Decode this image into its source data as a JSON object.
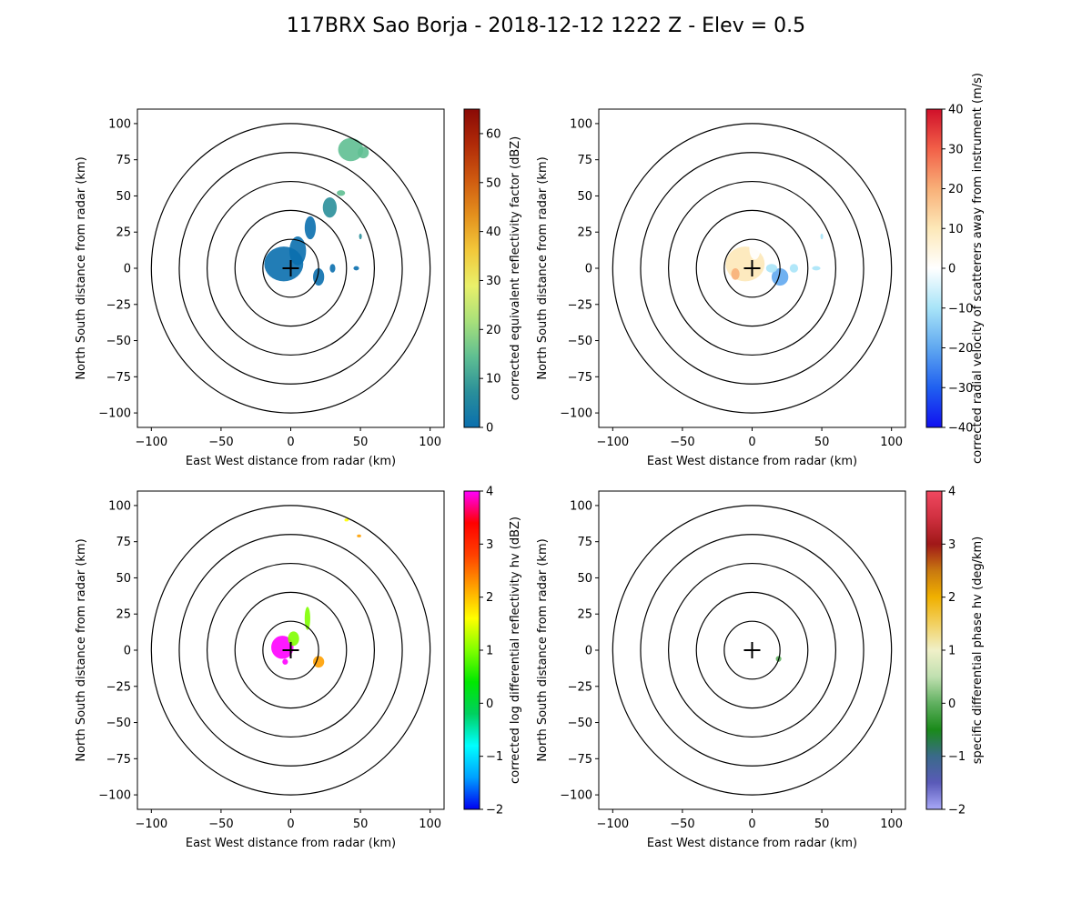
{
  "figure": {
    "title": "117BRX Sao Borja - 2018-12-12 1222 Z -  Elev = 0.5"
  },
  "chart_data": [
    {
      "type": "radar-ppi",
      "xlabel": "East West distance from radar (km)",
      "ylabel": "North South distance from radar (km)",
      "xlim": [
        -110,
        110
      ],
      "ylim": [
        -110,
        110
      ],
      "ticks": [
        -100,
        -75,
        -50,
        -25,
        0,
        25,
        50,
        75,
        100
      ],
      "xticks": [
        -100,
        -50,
        0,
        50,
        100
      ],
      "range_rings_km": [
        20,
        40,
        60,
        80,
        100
      ],
      "colorbar": {
        "label": "corrected equivalent reflectivity factor (dBZ)",
        "min": 0,
        "max": 65,
        "ticks": [
          0,
          10,
          20,
          30,
          40,
          50,
          60
        ],
        "colors": [
          "#0a6fae",
          "#2a8f9a",
          "#5fbf92",
          "#a8e07a",
          "#e9f06a",
          "#f2c83a",
          "#e4901d",
          "#cf5a10",
          "#b02a08",
          "#8a0a06"
        ]
      },
      "echoes": [
        {
          "x": -5,
          "y": 3,
          "rx": 14,
          "ry": 12,
          "value": 3
        },
        {
          "x": 5,
          "y": 12,
          "rx": 6,
          "ry": 10,
          "value": 4
        },
        {
          "x": 14,
          "y": 28,
          "rx": 4,
          "ry": 8,
          "value": 5
        },
        {
          "x": 20,
          "y": -6,
          "rx": 4,
          "ry": 6,
          "value": 3
        },
        {
          "x": 28,
          "y": 42,
          "rx": 5,
          "ry": 7,
          "value": 12
        },
        {
          "x": 43,
          "y": 82,
          "rx": 9,
          "ry": 8,
          "value": 18
        },
        {
          "x": 52,
          "y": 80,
          "rx": 4,
          "ry": 4,
          "value": 16
        },
        {
          "x": 36,
          "y": 52,
          "rx": 3,
          "ry": 2,
          "value": 14
        },
        {
          "x": 30,
          "y": 0,
          "rx": 2,
          "ry": 3,
          "value": 4
        },
        {
          "x": 47,
          "y": 0,
          "rx": 2,
          "ry": 1.5,
          "value": 6
        },
        {
          "x": 50,
          "y": 22,
          "rx": 1,
          "ry": 2,
          "value": 8
        }
      ]
    },
    {
      "type": "radar-ppi",
      "xlabel": "East West distance from radar (km)",
      "ylabel": "North South distance from radar (km)",
      "xlim": [
        -110,
        110
      ],
      "ylim": [
        -110,
        110
      ],
      "ticks": [
        -100,
        -75,
        -50,
        -25,
        0,
        25,
        50,
        75,
        100
      ],
      "xticks": [
        -100,
        -50,
        0,
        50,
        100
      ],
      "range_rings_km": [
        20,
        40,
        60,
        80,
        100
      ],
      "colorbar": {
        "label": "corrected radial velocity of scatterers away from instrument (m/s)",
        "min": -40,
        "max": 40,
        "ticks": [
          -40,
          -30,
          -20,
          -10,
          0,
          10,
          20,
          30,
          40
        ],
        "colors": [
          "#1010f0",
          "#2060f0",
          "#60a8f0",
          "#a8e4f8",
          "#ffffff",
          "#fde8b8",
          "#f8b078",
          "#f26048",
          "#d0102a"
        ]
      },
      "echoes": [
        {
          "x": -5,
          "y": 3,
          "rx": 14,
          "ry": 12,
          "value": 6
        },
        {
          "x": 2,
          "y": 14,
          "rx": 4,
          "ry": 8,
          "value": 4
        },
        {
          "x": -12,
          "y": -4,
          "rx": 3,
          "ry": 4,
          "value": 16
        },
        {
          "x": 20,
          "y": -6,
          "rx": 6,
          "ry": 6,
          "value": -14
        },
        {
          "x": 30,
          "y": 0,
          "rx": 3,
          "ry": 3,
          "value": -12
        },
        {
          "x": 46,
          "y": 0,
          "rx": 3,
          "ry": 1.5,
          "value": -10
        },
        {
          "x": 14,
          "y": 0,
          "rx": 4,
          "ry": 3,
          "value": -8
        },
        {
          "x": 50,
          "y": 22,
          "rx": 1,
          "ry": 2,
          "value": -6
        }
      ]
    },
    {
      "type": "radar-ppi",
      "xlabel": "East West distance from radar (km)",
      "ylabel": "North South distance from radar (km)",
      "xlim": [
        -110,
        110
      ],
      "ylim": [
        -110,
        110
      ],
      "ticks": [
        -100,
        -75,
        -50,
        -25,
        0,
        25,
        50,
        75,
        100
      ],
      "xticks": [
        -100,
        -50,
        0,
        50,
        100
      ],
      "range_rings_km": [
        20,
        40,
        60,
        80,
        100
      ],
      "colorbar": {
        "label": "corrected log differential reflectivity hv (dBZ)",
        "min": -2,
        "max": 4,
        "ticks": [
          -2,
          -1,
          0,
          1,
          2,
          3,
          4
        ],
        "colors": [
          "#0000f0",
          "#00a0ff",
          "#00ffff",
          "#00d060",
          "#00e800",
          "#80ff00",
          "#ffff00",
          "#ffa000",
          "#ff4000",
          "#ff0000",
          "#ff00ff"
        ]
      },
      "echoes": [
        {
          "x": -6,
          "y": 2,
          "rx": 8,
          "ry": 8,
          "value": 3.8
        },
        {
          "x": 2,
          "y": 8,
          "rx": 4,
          "ry": 5,
          "value": 1.2
        },
        {
          "x": 12,
          "y": 22,
          "rx": 2,
          "ry": 8,
          "value": 1.0
        },
        {
          "x": 20,
          "y": -8,
          "rx": 4,
          "ry": 4,
          "value": 2.0
        },
        {
          "x": 40,
          "y": 90,
          "rx": 1.5,
          "ry": 1,
          "value": 1.4
        },
        {
          "x": 49,
          "y": 79,
          "rx": 1.5,
          "ry": 1,
          "value": 2.2
        },
        {
          "x": -4,
          "y": -8,
          "rx": 2,
          "ry": 2,
          "value": 3.5
        }
      ]
    },
    {
      "type": "radar-ppi",
      "xlabel": "East West distance from radar (km)",
      "ylabel": "North South distance from radar (km)",
      "xlim": [
        -110,
        110
      ],
      "ylim": [
        -110,
        110
      ],
      "ticks": [
        -100,
        -75,
        -50,
        -25,
        0,
        25,
        50,
        75,
        100
      ],
      "xticks": [
        -100,
        -50,
        0,
        50,
        100
      ],
      "range_rings_km": [
        20,
        40,
        60,
        80,
        100
      ],
      "colorbar": {
        "label": "specific differential phase hv (deg/km)",
        "min": -2,
        "max": 4,
        "ticks": [
          -2,
          -1,
          0,
          1,
          2,
          3,
          4
        ],
        "colors": [
          "#a8a8f8",
          "#5a5ab8",
          "#3a6a8a",
          "#1a8a1a",
          "#60b060",
          "#c0e0b0",
          "#f0f0c8",
          "#f2d060",
          "#f0b000",
          "#c87810",
          "#a01818",
          "#d03040",
          "#f04860"
        ]
      },
      "echoes": [
        {
          "x": 19,
          "y": -6,
          "rx": 2,
          "ry": 2,
          "value": 0.1
        }
      ]
    }
  ]
}
